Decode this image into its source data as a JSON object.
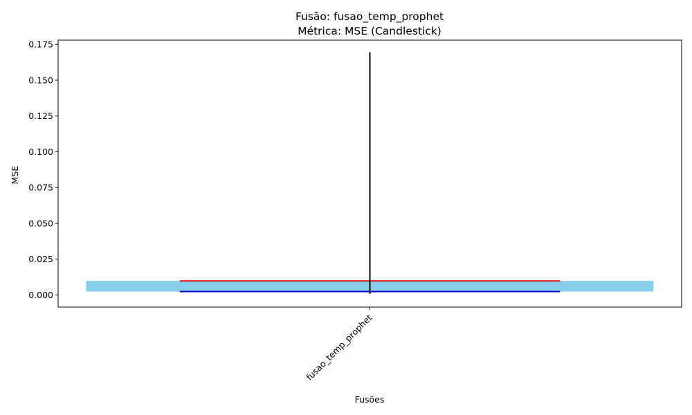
{
  "chart_data": {
    "type": "candlestick",
    "title": "Fusão: fusao_temp_prophet",
    "subtitle": "Métrica: MSE (Candlestick)",
    "xlabel": "Fusões",
    "ylabel": "MSE",
    "categories": [
      "fusao_temp_prophet"
    ],
    "ylim": [
      -0.0085,
      0.178
    ],
    "yticks": [
      0.0,
      0.025,
      0.05,
      0.075,
      0.1,
      0.125,
      0.15,
      0.175
    ],
    "ytick_labels": [
      "0.000",
      "0.025",
      "0.050",
      "0.075",
      "0.100",
      "0.125",
      "0.150",
      "0.175"
    ],
    "grid": false,
    "candles": [
      {
        "category": "fusao_temp_prophet",
        "open": 0.0098,
        "close": 0.0024,
        "low": 0.0008,
        "high": 0.1695
      }
    ],
    "colors": {
      "body": "#87ceeb",
      "open_line": "#e31a1c",
      "close_line": "#0000cc",
      "wick": "#000000",
      "axes": "#000000"
    }
  }
}
